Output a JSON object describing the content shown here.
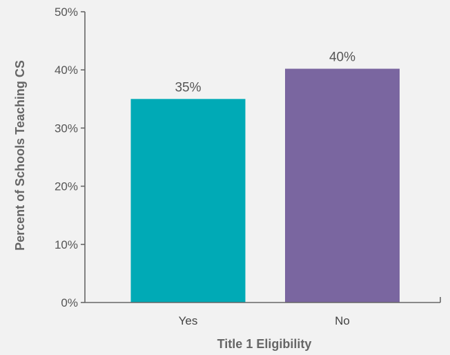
{
  "chart_data": {
    "type": "bar",
    "categories": [
      "Yes",
      "No"
    ],
    "values": [
      35,
      40.2
    ],
    "value_labels": [
      "35%",
      "40%"
    ],
    "colors": [
      "#00aab6",
      "#7a66a0"
    ],
    "xlabel": "Title 1 Eligibility",
    "ylabel": "Percent of Schools Teaching CS",
    "ylim": [
      0,
      50
    ],
    "y_ticks": [
      0,
      10,
      20,
      30,
      40,
      50
    ],
    "y_tick_labels": [
      "0%",
      "10%",
      "20%",
      "30%",
      "40%",
      "50%"
    ],
    "grid": false,
    "legend": "none"
  }
}
